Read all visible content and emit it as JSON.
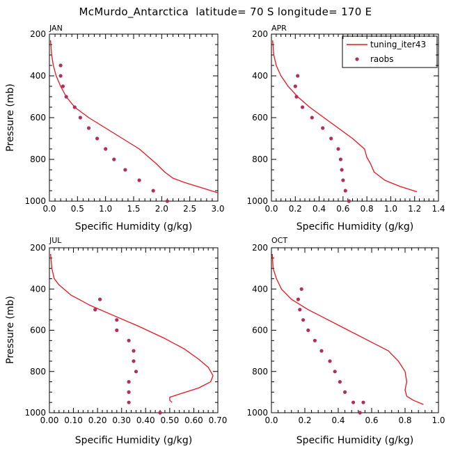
{
  "figure": {
    "title": "McMurdo_Antarctica  latitude= 70 S longitude= 170 E"
  },
  "legend": {
    "model_label": "tuning_iter43",
    "obs_label": "raobs"
  },
  "colors": {
    "model_line": "#e8141e",
    "obs_marker": "#b0305c",
    "axes": "#000000"
  },
  "chart_data": [
    {
      "type": "line",
      "panel": "JAN",
      "xlabel": "Specific Humidity (g/kg)",
      "ylabel": "Pressure (mb)",
      "xlim": [
        0,
        3.0
      ],
      "ylim": [
        1000,
        200
      ],
      "y_scale": "linear-inverted",
      "xticks": [
        "0.0",
        "0.5",
        "1.0",
        "1.5",
        "2.0",
        "2.5",
        "3.0"
      ],
      "yticks": [
        "200",
        "400",
        "600",
        "800",
        "1000"
      ],
      "series": [
        {
          "name": "tuning_iter43",
          "style": "line",
          "x": [
            0.02,
            0.04,
            0.07,
            0.12,
            0.2,
            0.3,
            0.45,
            0.7,
            1.0,
            1.3,
            1.6,
            1.9,
            2.05,
            2.2,
            2.4,
            2.7,
            3.0
          ],
          "y": [
            230,
            300,
            350,
            400,
            450,
            500,
            550,
            600,
            650,
            700,
            750,
            820,
            860,
            890,
            910,
            935,
            960
          ]
        },
        {
          "name": "raobs",
          "style": "markers",
          "x": [
            0.2,
            0.2,
            0.24,
            0.3,
            0.45,
            0.55,
            0.7,
            0.85,
            1.0,
            1.15,
            1.35,
            1.6,
            1.85,
            2.1
          ],
          "y": [
            350,
            400,
            450,
            500,
            550,
            600,
            650,
            700,
            750,
            800,
            850,
            900,
            950,
            1000
          ]
        }
      ]
    },
    {
      "type": "line",
      "panel": "APR",
      "xlabel": "Specific Humidity (g/kg)",
      "ylabel": "",
      "xlim": [
        0,
        1.4
      ],
      "ylim": [
        1000,
        200
      ],
      "y_scale": "linear-inverted",
      "xticks": [
        "0.0",
        "0.2",
        "0.4",
        "0.6",
        "0.8",
        "1.0",
        "1.2",
        "1.4"
      ],
      "yticks": [
        "200",
        "400",
        "600",
        "800",
        "1000"
      ],
      "series": [
        {
          "name": "tuning_iter43",
          "style": "line",
          "x": [
            0.01,
            0.02,
            0.04,
            0.08,
            0.14,
            0.22,
            0.32,
            0.44,
            0.56,
            0.68,
            0.78,
            0.8,
            0.83,
            0.86,
            0.95,
            1.08,
            1.22
          ],
          "y": [
            230,
            300,
            350,
            400,
            450,
            500,
            550,
            600,
            650,
            700,
            750,
            790,
            820,
            860,
            900,
            930,
            955
          ]
        },
        {
          "name": "raobs",
          "style": "markers",
          "x": [
            0.22,
            0.2,
            0.21,
            0.26,
            0.34,
            0.43,
            0.5,
            0.56,
            0.58,
            0.59,
            0.6,
            0.62,
            0.65
          ],
          "y": [
            400,
            450,
            500,
            550,
            600,
            650,
            700,
            750,
            800,
            850,
            900,
            950,
            1000
          ]
        }
      ]
    },
    {
      "type": "line",
      "panel": "JUL",
      "xlabel": "Specific Humidity (g/kg)",
      "ylabel": "Pressure (mb)",
      "xlim": [
        0,
        0.7
      ],
      "ylim": [
        1000,
        200
      ],
      "y_scale": "linear-inverted",
      "xticks": [
        "0.00",
        "0.10",
        "0.20",
        "0.30",
        "0.40",
        "0.50",
        "0.60",
        "0.70"
      ],
      "yticks": [
        "200",
        "400",
        "600",
        "800",
        "1000"
      ],
      "series": [
        {
          "name": "tuning_iter43",
          "style": "line",
          "x": [
            0.005,
            0.01,
            0.02,
            0.04,
            0.09,
            0.17,
            0.27,
            0.37,
            0.48,
            0.56,
            0.62,
            0.66,
            0.68,
            0.67,
            0.62,
            0.54,
            0.5,
            0.5,
            0.51
          ],
          "y": [
            230,
            300,
            350,
            380,
            430,
            480,
            530,
            580,
            640,
            690,
            740,
            780,
            820,
            850,
            880,
            910,
            925,
            940,
            950
          ]
        },
        {
          "name": "raobs",
          "style": "markers",
          "x": [
            0.21,
            0.19,
            0.28,
            0.28,
            0.33,
            0.35,
            0.35,
            0.36,
            0.33,
            0.33,
            0.33,
            0.46
          ],
          "y": [
            450,
            500,
            550,
            600,
            650,
            700,
            750,
            800,
            850,
            900,
            950,
            1000
          ]
        }
      ]
    },
    {
      "type": "line",
      "panel": "OCT",
      "xlabel": "Specific Humidity (g/kg)",
      "ylabel": "",
      "xlim": [
        0,
        1.0
      ],
      "ylim": [
        1000,
        200
      ],
      "y_scale": "linear-inverted",
      "xticks": [
        "0.0",
        "0.2",
        "0.4",
        "0.6",
        "0.8",
        "1.0"
      ],
      "yticks": [
        "200",
        "400",
        "600",
        "800",
        "1000"
      ],
      "series": [
        {
          "name": "tuning_iter43",
          "style": "line",
          "x": [
            0.005,
            0.01,
            0.03,
            0.06,
            0.12,
            0.22,
            0.34,
            0.46,
            0.58,
            0.7,
            0.76,
            0.8,
            0.81,
            0.8,
            0.81,
            0.85,
            0.91
          ],
          "y": [
            230,
            300,
            350,
            400,
            450,
            500,
            550,
            600,
            650,
            700,
            750,
            800,
            850,
            890,
            920,
            940,
            960
          ]
        },
        {
          "name": "raobs",
          "style": "markers",
          "x": [
            0.18,
            0.16,
            0.17,
            0.19,
            0.22,
            0.26,
            0.3,
            0.35,
            0.38,
            0.41,
            0.44,
            0.49,
            0.55,
            0.53
          ],
          "y": [
            400,
            450,
            500,
            550,
            600,
            650,
            700,
            750,
            800,
            850,
            900,
            950,
            950,
            1000
          ]
        }
      ]
    }
  ]
}
